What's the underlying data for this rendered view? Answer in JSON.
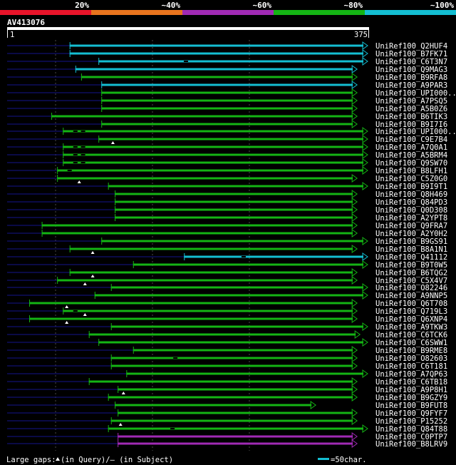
{
  "chart_data": {
    "type": "alignment",
    "title": "AV413076",
    "query_length": 375,
    "ruler": {
      "start_label": "1",
      "end_label": "375"
    },
    "identity_legend": [
      {
        "label": "20%",
        "color": "#e8142a"
      },
      {
        "label": "~40%",
        "color": "#e8741e"
      },
      {
        "label": "~60%",
        "color": "#a02ab4"
      },
      {
        "label": "~80%",
        "color": "#14b414"
      },
      {
        "label": "~100%",
        "color": "#14bed2"
      }
    ],
    "footer": {
      "gaps_text": "Large gaps: ",
      "query_text": "(in Query)/",
      "subject_text": "(in Subject)",
      "scale_text": "=50char."
    },
    "hits": [
      {
        "name": "UniRef100_Q2HUF4",
        "start": 66,
        "end": 375,
        "color": "#14bed2",
        "arrow": true
      },
      {
        "name": "UniRef100_B7FK71",
        "start": 66,
        "end": 375,
        "color": "#14bed2",
        "arrow": true
      },
      {
        "name": "UniRef100_C6T3N7",
        "start": 96,
        "end": 375,
        "color": "#14bed2",
        "arrow": true,
        "subject_gaps": [
          187
        ]
      },
      {
        "name": "UniRef100_Q9MAG3",
        "start": 72,
        "end": 365,
        "color": "#14bed2",
        "arrow": true
      },
      {
        "name": "UniRef100_B9RFA8",
        "start": 78,
        "end": 365,
        "color": "#14b414",
        "arrow": true
      },
      {
        "name": "UniRef100_A9PAR3",
        "start": 99,
        "end": 365,
        "color": "#14bed2",
        "arrow": true
      },
      {
        "name": "UniRef100_UPI000..",
        "start": 99,
        "end": 365,
        "color": "#14b414",
        "arrow": true
      },
      {
        "name": "UniRef100_A7PSQ5",
        "start": 99,
        "end": 365,
        "color": "#14b414",
        "arrow": true
      },
      {
        "name": "UniRef100_A5B0Z6",
        "start": 99,
        "end": 365,
        "color": "#14b414",
        "arrow": true
      },
      {
        "name": "UniRef100_B6TIK3",
        "start": 47,
        "end": 365,
        "color": "#14b414",
        "arrow": true
      },
      {
        "name": "UniRef100_B9I7I6",
        "start": 99,
        "end": 365,
        "color": "#14b414",
        "arrow": true
      },
      {
        "name": "UniRef100_UPI000..",
        "start": 59,
        "end": 375,
        "color": "#14b414",
        "arrow": true,
        "subject_gaps": [
          72,
          80
        ]
      },
      {
        "name": "UniRef100_C9E7B4",
        "start": 96,
        "end": 375,
        "color": "#14b414",
        "arrow": true,
        "query_gaps": [
          111
        ]
      },
      {
        "name": "UniRef100_A7Q0A1",
        "start": 59,
        "end": 375,
        "color": "#14b414",
        "arrow": true,
        "subject_gaps": [
          72,
          80
        ]
      },
      {
        "name": "UniRef100_A5BRM4",
        "start": 59,
        "end": 375,
        "color": "#14b414",
        "arrow": true,
        "subject_gaps": [
          72,
          80
        ]
      },
      {
        "name": "UniRef100_Q9SW70",
        "start": 59,
        "end": 375,
        "color": "#14b414",
        "arrow": true,
        "subject_gaps": [
          72,
          80
        ]
      },
      {
        "name": "UniRef100_B8LFH1",
        "start": 53,
        "end": 375,
        "color": "#14b414",
        "arrow": true,
        "subject_gaps": [
          66
        ]
      },
      {
        "name": "UniRef100_C5Z0G0",
        "start": 53,
        "end": 365,
        "color": "#14b414",
        "arrow": true,
        "query_gaps": [
          76
        ]
      },
      {
        "name": "UniRef100_B9I9T1",
        "start": 106,
        "end": 375,
        "color": "#14b414",
        "arrow": true
      },
      {
        "name": "UniRef100_Q8H469",
        "start": 113,
        "end": 365,
        "color": "#14b414",
        "arrow": true
      },
      {
        "name": "UniRef100_Q84PD3",
        "start": 113,
        "end": 365,
        "color": "#14b414",
        "arrow": true
      },
      {
        "name": "UniRef100_Q0D308",
        "start": 113,
        "end": 365,
        "color": "#14b414",
        "arrow": true
      },
      {
        "name": "UniRef100_A2YPT8",
        "start": 113,
        "end": 365,
        "color": "#14b414",
        "arrow": true
      },
      {
        "name": "UniRef100_Q9FRA7",
        "start": 37,
        "end": 365,
        "color": "#14b414",
        "arrow": true
      },
      {
        "name": "UniRef100_A2Y0H2",
        "start": 37,
        "end": 365,
        "color": "#14b414",
        "arrow": true
      },
      {
        "name": "UniRef100_B9GS91",
        "start": 99,
        "end": 375,
        "color": "#14b414",
        "arrow": true
      },
      {
        "name": "UniRef100_B8A1N1",
        "start": 66,
        "end": 365,
        "color": "#14b414",
        "arrow": true,
        "query_gaps": [
          90
        ]
      },
      {
        "name": "UniRef100_Q41112",
        "start": 185,
        "end": 375,
        "color": "#14bed2",
        "arrow": true,
        "subject_gaps": [
          247
        ]
      },
      {
        "name": "UniRef100_B9T0W5",
        "start": 132,
        "end": 375,
        "color": "#14b414",
        "arrow": true
      },
      {
        "name": "UniRef100_B6TQG2",
        "start": 66,
        "end": 365,
        "color": "#14b414",
        "arrow": true,
        "query_gaps": [
          90
        ]
      },
      {
        "name": "UniRef100_C5X4V7",
        "start": 53,
        "end": 365,
        "color": "#14b414",
        "arrow": true,
        "query_gaps": [
          82
        ]
      },
      {
        "name": "UniRef100_O82246",
        "start": 109,
        "end": 375,
        "color": "#14b414",
        "arrow": true
      },
      {
        "name": "UniRef100_A9NNP5",
        "start": 92,
        "end": 375,
        "color": "#14b414",
        "arrow": true
      },
      {
        "name": "UniRef100_Q6T708",
        "start": 24,
        "end": 365,
        "color": "#14b414",
        "arrow": true,
        "query_gaps": [
          63
        ]
      },
      {
        "name": "UniRef100_Q719L3",
        "start": 59,
        "end": 365,
        "color": "#14b414",
        "arrow": true,
        "query_gaps": [
          82
        ],
        "subject_gaps": [
          72
        ]
      },
      {
        "name": "UniRef100_Q6XNP4",
        "start": 24,
        "end": 365,
        "color": "#14b414",
        "arrow": true,
        "query_gaps": [
          63
        ]
      },
      {
        "name": "UniRef100_A9TKW3",
        "start": 109,
        "end": 375,
        "color": "#14b414",
        "arrow": true
      },
      {
        "name": "UniRef100_C6TCK6",
        "start": 86,
        "end": 368,
        "color": "#14b414",
        "arrow": true
      },
      {
        "name": "UniRef100_C6SWW1",
        "start": 96,
        "end": 375,
        "color": "#14b414",
        "arrow": true
      },
      {
        "name": "UniRef100_B9RME8",
        "start": 132,
        "end": 365,
        "color": "#14b414",
        "arrow": true
      },
      {
        "name": "UniRef100_O82603",
        "start": 109,
        "end": 365,
        "color": "#14b414",
        "arrow": true,
        "subject_gaps": [
          176
        ]
      },
      {
        "name": "UniRef100_C6T181",
        "start": 109,
        "end": 365,
        "color": "#14b414",
        "arrow": true
      },
      {
        "name": "UniRef100_A7QP63",
        "start": 125,
        "end": 375,
        "color": "#14b414",
        "arrow": true
      },
      {
        "name": "UniRef100_C6TB18",
        "start": 86,
        "end": 365,
        "color": "#14b414",
        "arrow": true
      },
      {
        "name": "UniRef100_A9P8H1",
        "start": 116,
        "end": 365,
        "color": "#14b414",
        "arrow": true,
        "query_gaps": [
          122
        ]
      },
      {
        "name": "UniRef100_B9GZY9",
        "start": 106,
        "end": 365,
        "color": "#14b414",
        "arrow": true
      },
      {
        "name": "UniRef100_B9FUT8",
        "start": 113,
        "end": 322,
        "color": "#14b414",
        "arrow": true
      },
      {
        "name": "UniRef100_Q9FYF7",
        "start": 116,
        "end": 365,
        "color": "#14b414",
        "arrow": true
      },
      {
        "name": "UniRef100_P15252",
        "start": 109,
        "end": 365,
        "color": "#14b414",
        "arrow": true,
        "query_gaps": [
          119
        ]
      },
      {
        "name": "UniRef100_Q84T88",
        "start": 106,
        "end": 375,
        "color": "#14b414",
        "arrow": true,
        "subject_gaps": [
          173
        ]
      },
      {
        "name": "UniRef100_C0PTP7",
        "start": 116,
        "end": 365,
        "color": "#a02ab4",
        "arrow": true
      },
      {
        "name": "UniRef100_B8LRV9",
        "start": 116,
        "end": 365,
        "color": "#a02ab4",
        "arrow": true
      }
    ]
  }
}
